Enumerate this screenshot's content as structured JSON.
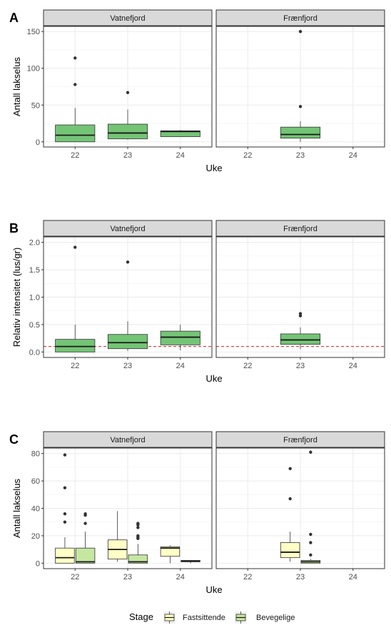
{
  "legend": {
    "title": "Stage",
    "items": [
      {
        "label": "Fastsittende",
        "fill": "#FFFFC6"
      },
      {
        "label": "Bevegelige",
        "fill": "#C6E7A1"
      }
    ]
  },
  "colors": {
    "green": "#74C476",
    "strip": "#D9D9D9",
    "refline": "#E41A1C",
    "grid": "#EBEBEB",
    "axis_text": "#4D4D4D"
  },
  "chart_data": [
    {
      "type": "box",
      "tag": "A",
      "xlabel": "Uke",
      "ylabel": "Antall lakselus",
      "ylim": [
        -7,
        157
      ],
      "yticks": [
        0,
        50,
        100,
        150
      ],
      "categories": [
        "22",
        "23",
        "24"
      ],
      "facets": [
        {
          "name": "Vatnefjord",
          "boxes": [
            {
              "x": "22",
              "min": 0,
              "q1": 0,
              "median": 9,
              "q3": 23,
              "max": 46,
              "outliers": [
                78,
                114
              ],
              "fill": "#74C476"
            },
            {
              "x": "23",
              "min": 3,
              "q1": 4,
              "median": 12,
              "q3": 24,
              "max": 44,
              "outliers": [
                67
              ],
              "fill": "#74C476"
            },
            {
              "x": "24",
              "min": 7,
              "q1": 7,
              "median": 14,
              "q3": 15,
              "max": 16,
              "outliers": [],
              "fill": "#74C476"
            }
          ]
        },
        {
          "name": "Frænfjord",
          "boxes": [
            {
              "x": "23",
              "min": 0,
              "q1": 5,
              "median": 10,
              "q3": 20,
              "max": 28,
              "outliers": [
                48,
                150
              ],
              "fill": "#74C476"
            }
          ]
        }
      ]
    },
    {
      "type": "box",
      "tag": "B",
      "xlabel": "Uke",
      "ylabel": "Relativ intensitet (lus/gr)",
      "ylim": [
        -0.1,
        2.1
      ],
      "yticks": [
        0.0,
        0.5,
        1.0,
        1.5,
        2.0
      ],
      "ytick_labels": [
        "0.0",
        "0.5",
        "1.0",
        "1.5",
        "2.0"
      ],
      "reference_line": 0.1,
      "categories": [
        "22",
        "23",
        "24"
      ],
      "facets": [
        {
          "name": "Vatnefjord",
          "boxes": [
            {
              "x": "22",
              "min": 0,
              "q1": 0,
              "median": 0.1,
              "q3": 0.23,
              "max": 0.5,
              "outliers": [
                1.91
              ],
              "fill": "#74C476"
            },
            {
              "x": "23",
              "min": 0.02,
              "q1": 0.06,
              "median": 0.17,
              "q3": 0.32,
              "max": 0.56,
              "outliers": [
                1.64
              ],
              "fill": "#74C476"
            },
            {
              "x": "24",
              "min": 0.03,
              "q1": 0.13,
              "median": 0.27,
              "q3": 0.38,
              "max": 0.5,
              "outliers": [],
              "fill": "#74C476"
            }
          ]
        },
        {
          "name": "Frænfjord",
          "boxes": [
            {
              "x": "23",
              "min": 0.05,
              "q1": 0.14,
              "median": 0.22,
              "q3": 0.33,
              "max": 0.45,
              "outliers": [
                0.66,
                0.7
              ],
              "fill": "#74C476"
            }
          ]
        }
      ]
    },
    {
      "type": "box",
      "tag": "C",
      "xlabel": "Uke",
      "ylabel": "Antall lakselus",
      "ylim": [
        -4,
        84
      ],
      "yticks": [
        0,
        20,
        40,
        60,
        80
      ],
      "categories": [
        "22",
        "23",
        "24"
      ],
      "dodge": true,
      "facets": [
        {
          "name": "Vatnefjord",
          "boxes": [
            {
              "x": "22",
              "stage": "Fastsittende",
              "min": 0,
              "q1": 0,
              "median": 4,
              "q3": 11,
              "max": 19,
              "outliers": [
                30,
                36,
                55,
                79
              ],
              "fill": "#FFFFC6"
            },
            {
              "x": "22",
              "stage": "Bevegelige",
              "min": 0,
              "q1": 0,
              "median": 1,
              "q3": 11,
              "max": 23,
              "outliers": [
                29,
                35,
                36
              ],
              "fill": "#C6E7A1"
            },
            {
              "x": "23",
              "stage": "Fastsittende",
              "min": 1,
              "q1": 3,
              "median": 10,
              "q3": 17,
              "max": 38,
              "outliers": [],
              "fill": "#FFFFC6"
            },
            {
              "x": "23",
              "stage": "Bevegelige",
              "min": 0,
              "q1": 0,
              "median": 1,
              "q3": 6,
              "max": 14,
              "outliers": [
                18,
                19,
                20,
                26,
                28,
                29
              ],
              "fill": "#C6E7A1"
            },
            {
              "x": "24",
              "stage": "Fastsittende",
              "min": 0,
              "q1": 5,
              "median": 11,
              "q3": 12,
              "max": 13,
              "outliers": [],
              "fill": "#FFFFC6"
            },
            {
              "x": "24",
              "stage": "Bevegelige",
              "min": 0,
              "q1": 1,
              "median": 1.5,
              "q3": 2,
              "max": 2,
              "outliers": [],
              "fill": "#C6E7A1"
            }
          ]
        },
        {
          "name": "Frænfjord",
          "boxes": [
            {
              "x": "23",
              "stage": "Fastsittende",
              "min": 1,
              "q1": 4,
              "median": 8,
              "q3": 15,
              "max": 23,
              "outliers": [
                47,
                69
              ],
              "fill": "#FFFFC6"
            },
            {
              "x": "23",
              "stage": "Bevegelige",
              "min": 0,
              "q1": 0,
              "median": 1,
              "q3": 2,
              "max": 3,
              "outliers": [
                6,
                15,
                21,
                81
              ],
              "fill": "#C6E7A1"
            }
          ]
        }
      ]
    }
  ]
}
